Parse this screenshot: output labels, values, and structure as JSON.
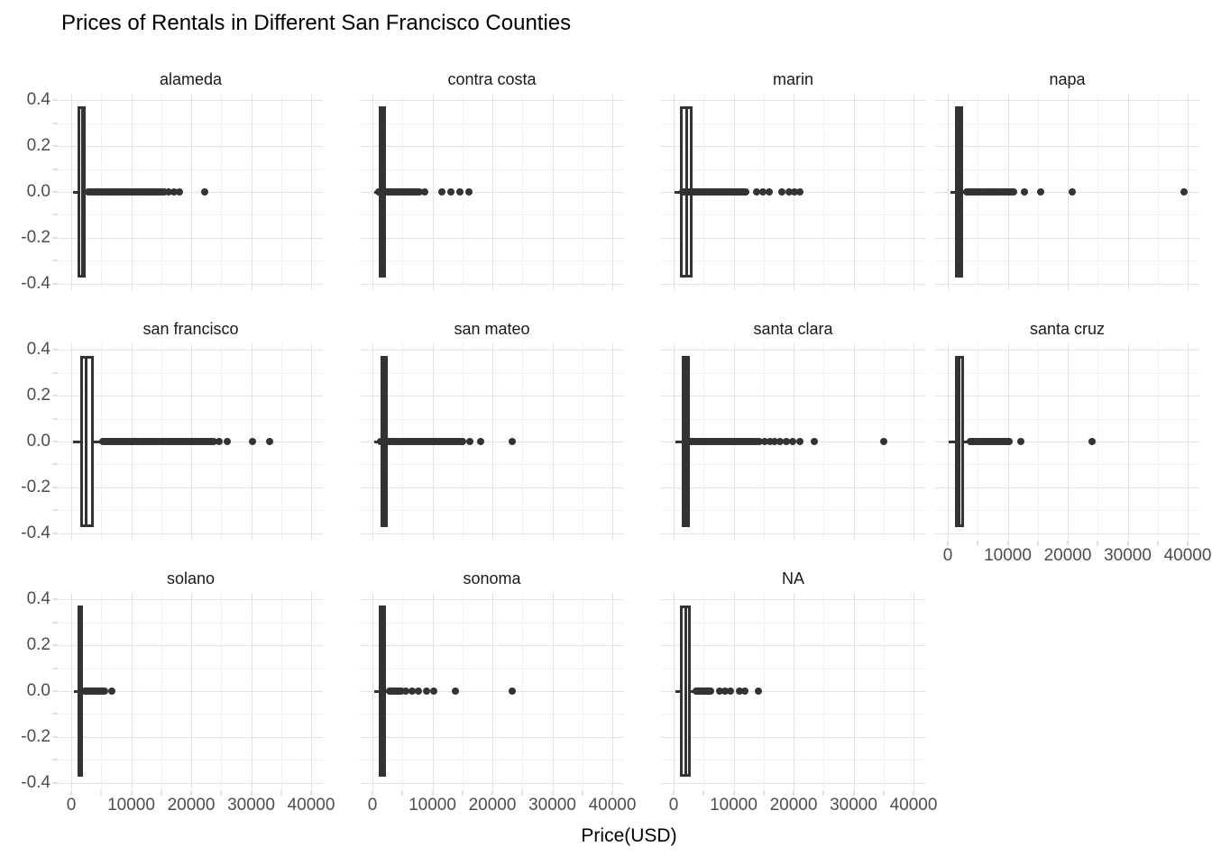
{
  "title": "Prices of Rentals in Different San Francisco Counties",
  "chart_data": {
    "type": "boxplot",
    "orientation": "horizontal",
    "faceted_by": "county",
    "title": "Prices of Rentals in Different San Francisco Counties",
    "xlabel": "Price(USD)",
    "ylabel": "",
    "x_range": [
      0,
      40000
    ],
    "y_range": [
      -0.45,
      0.45
    ],
    "grid": true,
    "x_ticks": [
      {
        "v": 0,
        "label": "0"
      },
      {
        "v": 10000,
        "label": "10000"
      },
      {
        "v": 20000,
        "label": "20000"
      },
      {
        "v": 30000,
        "label": "30000"
      },
      {
        "v": 40000,
        "label": "40000"
      }
    ],
    "y_ticks": [
      {
        "v": 0.4,
        "label": "0.4"
      },
      {
        "v": 0.2,
        "label": "0.2"
      },
      {
        "v": 0.0,
        "label": "0.0"
      },
      {
        "v": -0.2,
        "label": "-0.2"
      },
      {
        "v": -0.4,
        "label": "-0.4"
      }
    ],
    "box_y_halfheight": 0.373,
    "facets": [
      {
        "label": "alameda",
        "row": 0,
        "col": 0,
        "box": {
          "whisker_lo": 300,
          "q1": 1100,
          "median": 1800,
          "q3": 2400,
          "whisker_hi": 3000
        },
        "dense_outliers": {
          "from": 2900,
          "to": 15500,
          "count": 44
        },
        "outliers": [
          16300,
          17100,
          18000,
          22200
        ]
      },
      {
        "label": "contra costa",
        "row": 0,
        "col": 1,
        "box": {
          "whisker_lo": 300,
          "q1": 1000,
          "median": 1600,
          "q3": 2300,
          "whisker_hi": 3100
        },
        "dense_outliers": {
          "from": 1000,
          "to": 7800,
          "count": 26
        },
        "outliers": [
          8700,
          11600,
          13100,
          14600,
          16100
        ]
      },
      {
        "label": "marin",
        "row": 0,
        "col": 2,
        "box": {
          "whisker_lo": 200,
          "q1": 1000,
          "median": 2200,
          "q3": 3100,
          "whisker_hi": 4200
        },
        "dense_outliers": {
          "from": 1500,
          "to": 12000,
          "count": 42
        },
        "outliers": [
          13800,
          14900,
          16000,
          18000,
          19200,
          20100,
          21100
        ]
      },
      {
        "label": "napa",
        "row": 0,
        "col": 3,
        "box": {
          "whisker_lo": 400,
          "q1": 1200,
          "median": 1800,
          "q3": 2500,
          "whisker_hi": 3100
        },
        "dense_outliers": {
          "from": 3100,
          "to": 11000,
          "count": 26
        },
        "outliers": [
          12800,
          15500,
          20800,
          39400
        ]
      },
      {
        "label": "san francisco",
        "row": 1,
        "col": 0,
        "box": {
          "whisker_lo": 300,
          "q1": 1500,
          "median": 2500,
          "q3": 3700,
          "whisker_hi": 5200
        },
        "dense_outliers": {
          "from": 5200,
          "to": 23800,
          "count": 62
        },
        "outliers": [
          24700,
          26000,
          30200,
          33100
        ]
      },
      {
        "label": "san mateo",
        "row": 1,
        "col": 1,
        "box": {
          "whisker_lo": 300,
          "q1": 1300,
          "median": 1900,
          "q3": 2600,
          "whisker_hi": 3800
        },
        "dense_outliers": {
          "from": 1400,
          "to": 15100,
          "count": 48
        },
        "outliers": [
          16200,
          18100,
          23300
        ]
      },
      {
        "label": "santa clara",
        "row": 1,
        "col": 2,
        "box": {
          "whisker_lo": 300,
          "q1": 1300,
          "median": 2000,
          "q3": 2700,
          "whisker_hi": 4000
        },
        "dense_outliers": {
          "from": 1900,
          "to": 13800,
          "count": 46
        },
        "outliers": [
          14300,
          15200,
          16100,
          16900,
          17800,
          18800,
          19800,
          21000,
          23500,
          35000
        ]
      },
      {
        "label": "santa cruz",
        "row": 1,
        "col": 3,
        "box": {
          "whisker_lo": 200,
          "q1": 1200,
          "median": 1900,
          "q3": 2700,
          "whisker_hi": 3700
        },
        "dense_outliers": {
          "from": 3700,
          "to": 10200,
          "count": 24
        },
        "outliers": [
          12200,
          24000
        ]
      },
      {
        "label": "solano",
        "row": 2,
        "col": 0,
        "box": {
          "whisker_lo": 400,
          "q1": 1100,
          "median": 1500,
          "q3": 2000,
          "whisker_hi": 2300
        },
        "dense_outliers": {
          "from": 2300,
          "to": 5500,
          "count": 14
        },
        "outliers": [
          6800
        ]
      },
      {
        "label": "sonoma",
        "row": 2,
        "col": 1,
        "box": {
          "whisker_lo": 300,
          "q1": 1000,
          "median": 1600,
          "q3": 2200,
          "whisker_hi": 2800
        },
        "dense_outliers": {
          "from": 2800,
          "to": 4800,
          "count": 10
        },
        "outliers": [
          5600,
          6600,
          7700,
          9000,
          10200,
          13900,
          23300
        ]
      },
      {
        "label": "NA",
        "row": 2,
        "col": 2,
        "box": {
          "whisker_lo": 300,
          "q1": 1100,
          "median": 2000,
          "q3": 2900,
          "whisker_hi": 3800
        },
        "dense_outliers": {
          "from": 3800,
          "to": 6200,
          "count": 12
        },
        "outliers": [
          7600,
          8500,
          9400,
          11000,
          11900,
          14200
        ]
      }
    ]
  },
  "theme": {
    "background": "#ffffff",
    "box_color": "#333333",
    "point_color": "#333333",
    "grid_major": "#e2e2e2",
    "grid_minor": "#f1f1f1",
    "axis_text_color": "#4d4d4d",
    "strip_text_color": "#1a1a1a",
    "title_color": "#000000"
  }
}
